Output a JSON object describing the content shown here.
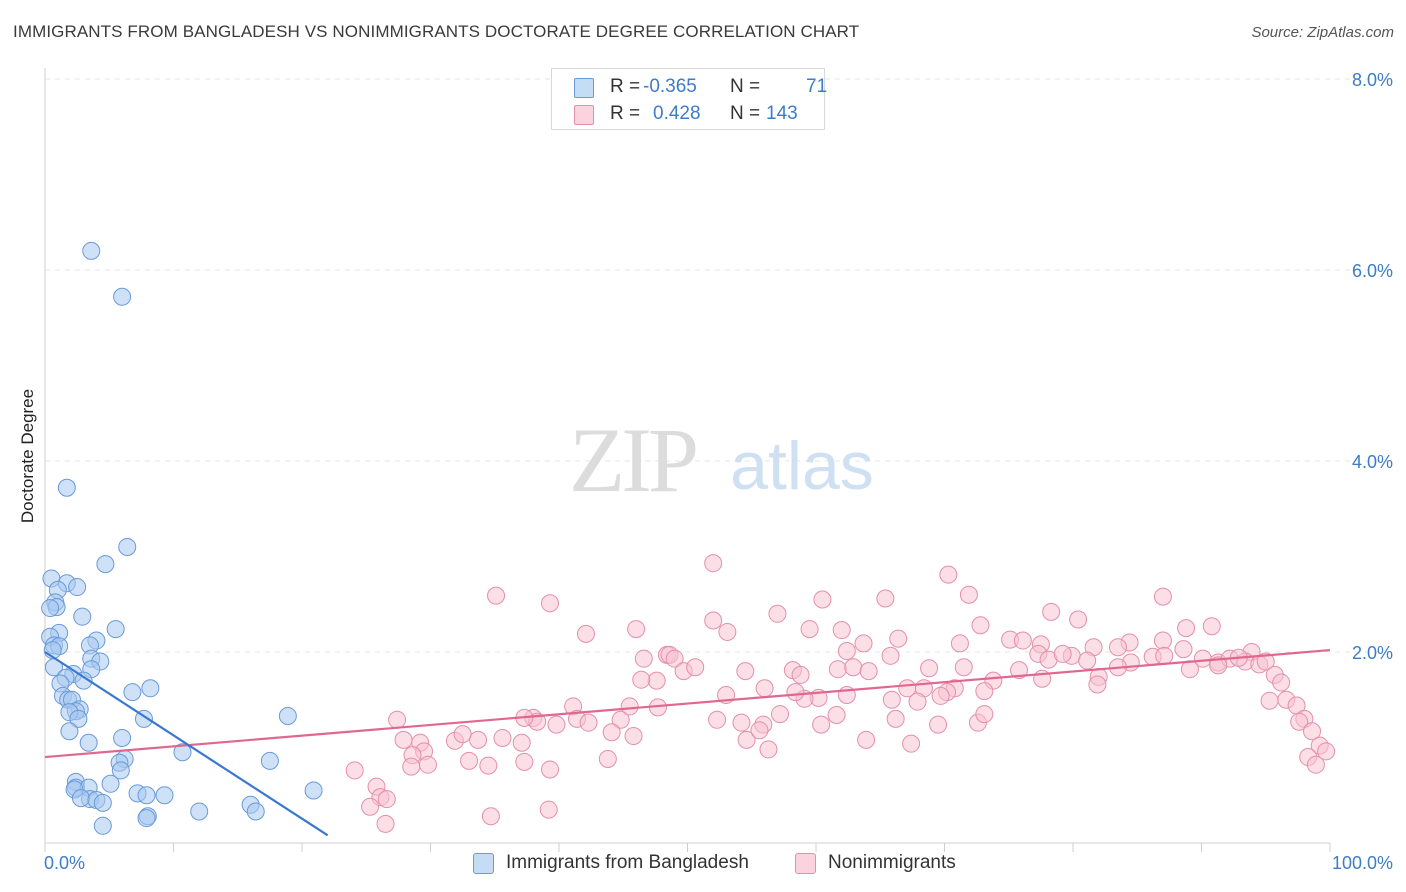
{
  "header": {
    "title": "IMMIGRANTS FROM BANGLADESH VS NONIMMIGRANTS DOCTORATE DEGREE CORRELATION CHART",
    "source": "Source: ZipAtlas.com"
  },
  "watermark": {
    "zip": "ZIP",
    "atlas": "atlas"
  },
  "legend": {
    "rows": [
      {
        "r_label": "R =",
        "r_value": "-0.365",
        "n_label": "N =",
        "n_value": "71",
        "color": "#a8c8f0",
        "border": "#5b8fd6"
      },
      {
        "r_label": "R =",
        "r_value": "0.428",
        "n_label": "N =",
        "n_value": "143",
        "color": "#f8c2d2",
        "border": "#e889a8"
      }
    ]
  },
  "bottom_legend": {
    "items": [
      {
        "label": "Immigrants from Bangladesh",
        "color": "#c5dcf5",
        "border": "#6a9ad8"
      },
      {
        "label": "Nonimmigrants",
        "color": "#fbd3df",
        "border": "#e48fac"
      }
    ]
  },
  "chart_data": {
    "type": "scatter",
    "title": "IMMIGRANTS FROM BANGLADESH VS NONIMMIGRANTS DOCTORATE DEGREE CORRELATION CHART",
    "xlabel": "",
    "ylabel": "Doctorate Degree",
    "xlim": [
      0,
      100
    ],
    "ylim": [
      0,
      8.0
    ],
    "x_tick_labels": [
      "0.0%",
      "100.0%"
    ],
    "y_ticks": [
      2.0,
      4.0,
      6.0,
      8.0
    ],
    "y_tick_labels": [
      "2.0%",
      "4.0%",
      "6.0%",
      "8.0%"
    ],
    "grid": true,
    "colors": {
      "blue_fill": "#a8c8f0",
      "blue_stroke": "#6a9ad8",
      "blue_line": "#3a78d0",
      "pink_fill": "#f8c2d2",
      "pink_stroke": "#e48fac",
      "pink_line": "#e06890",
      "tick_color": "#3d7cc9"
    },
    "series": [
      {
        "name": "Immigrants from Bangladesh",
        "r": -0.365,
        "n": 71,
        "trend": {
          "x": [
            0,
            22
          ],
          "y": [
            2.0,
            0.08
          ]
        },
        "points": [
          [
            3.6,
            6.2
          ],
          [
            6.0,
            5.72
          ],
          [
            1.7,
            3.72
          ],
          [
            6.4,
            3.1
          ],
          [
            4.7,
            2.92
          ],
          [
            0.5,
            2.77
          ],
          [
            1.7,
            2.72
          ],
          [
            2.5,
            2.68
          ],
          [
            1.0,
            2.65
          ],
          [
            0.8,
            2.52
          ],
          [
            0.9,
            2.47
          ],
          [
            0.4,
            2.46
          ],
          [
            2.9,
            2.37
          ],
          [
            5.5,
            2.24
          ],
          [
            1.1,
            2.2
          ],
          [
            0.4,
            2.16
          ],
          [
            4.0,
            2.12
          ],
          [
            0.7,
            2.07
          ],
          [
            3.5,
            2.07
          ],
          [
            1.1,
            2.06
          ],
          [
            0.6,
            2.02
          ],
          [
            3.6,
            1.93
          ],
          [
            4.3,
            1.9
          ],
          [
            0.7,
            1.84
          ],
          [
            3.6,
            1.82
          ],
          [
            2.2,
            1.77
          ],
          [
            1.6,
            1.73
          ],
          [
            3.0,
            1.7
          ],
          [
            1.2,
            1.67
          ],
          [
            8.2,
            1.62
          ],
          [
            6.8,
            1.58
          ],
          [
            1.4,
            1.54
          ],
          [
            1.8,
            1.5
          ],
          [
            2.1,
            1.5
          ],
          [
            2.7,
            1.4
          ],
          [
            2.4,
            1.38
          ],
          [
            1.9,
            1.37
          ],
          [
            2.6,
            1.3
          ],
          [
            7.7,
            1.3
          ],
          [
            18.9,
            1.33
          ],
          [
            1.9,
            1.17
          ],
          [
            3.4,
            1.05
          ],
          [
            6.0,
            1.1
          ],
          [
            10.7,
            0.95
          ],
          [
            6.2,
            0.88
          ],
          [
            5.8,
            0.84
          ],
          [
            17.5,
            0.86
          ],
          [
            5.9,
            0.76
          ],
          [
            2.4,
            0.64
          ],
          [
            2.4,
            0.58
          ],
          [
            3.4,
            0.58
          ],
          [
            2.3,
            0.56
          ],
          [
            5.1,
            0.62
          ],
          [
            7.2,
            0.52
          ],
          [
            9.3,
            0.5
          ],
          [
            7.9,
            0.5
          ],
          [
            20.9,
            0.55
          ],
          [
            3.5,
            0.46
          ],
          [
            2.8,
            0.47
          ],
          [
            4.0,
            0.45
          ],
          [
            4.5,
            0.42
          ],
          [
            12.0,
            0.33
          ],
          [
            16.0,
            0.4
          ],
          [
            16.4,
            0.33
          ],
          [
            8.0,
            0.28
          ],
          [
            7.9,
            0.26
          ],
          [
            4.5,
            0.18
          ]
        ]
      },
      {
        "name": "Nonimmigrants",
        "r": 0.428,
        "n": 143,
        "trend": {
          "x": [
            0,
            100
          ],
          "y": [
            0.9,
            2.02
          ]
        },
        "points": [
          [
            52.0,
            2.93
          ],
          [
            70.3,
            2.81
          ],
          [
            35.1,
            2.59
          ],
          [
            39.3,
            2.51
          ],
          [
            60.5,
            2.55
          ],
          [
            65.4,
            2.56
          ],
          [
            71.9,
            2.6
          ],
          [
            87.0,
            2.58
          ],
          [
            78.3,
            2.42
          ],
          [
            57.0,
            2.4
          ],
          [
            52.0,
            2.33
          ],
          [
            80.4,
            2.34
          ],
          [
            90.8,
            2.27
          ],
          [
            88.8,
            2.25
          ],
          [
            72.8,
            2.28
          ],
          [
            62.0,
            2.23
          ],
          [
            59.5,
            2.24
          ],
          [
            53.1,
            2.21
          ],
          [
            42.1,
            2.19
          ],
          [
            46.0,
            2.24
          ],
          [
            87.0,
            2.12
          ],
          [
            84.4,
            2.1
          ],
          [
            75.1,
            2.13
          ],
          [
            63.7,
            2.09
          ],
          [
            66.4,
            2.14
          ],
          [
            71.2,
            2.09
          ],
          [
            76.1,
            2.12
          ],
          [
            77.5,
            2.08
          ],
          [
            81.6,
            2.05
          ],
          [
            83.5,
            2.05
          ],
          [
            88.6,
            2.03
          ],
          [
            93.9,
            2.0
          ],
          [
            62.4,
            2.01
          ],
          [
            48.4,
            1.97
          ],
          [
            48.6,
            1.97
          ],
          [
            49.0,
            1.93
          ],
          [
            46.6,
            1.93
          ],
          [
            65.8,
            1.96
          ],
          [
            77.3,
            1.98
          ],
          [
            79.9,
            1.96
          ],
          [
            86.2,
            1.95
          ],
          [
            90.1,
            1.93
          ],
          [
            91.3,
            1.89
          ],
          [
            92.2,
            1.93
          ],
          [
            93.4,
            1.9
          ],
          [
            94.5,
            1.87
          ],
          [
            91.3,
            1.86
          ],
          [
            92.9,
            1.94
          ],
          [
            78.1,
            1.92
          ],
          [
            81.1,
            1.91
          ],
          [
            84.5,
            1.89
          ],
          [
            79.2,
            1.98
          ],
          [
            87.1,
            1.96
          ],
          [
            95.0,
            1.9
          ],
          [
            58.2,
            1.81
          ],
          [
            58.8,
            1.76
          ],
          [
            61.7,
            1.82
          ],
          [
            62.9,
            1.84
          ],
          [
            68.8,
            1.83
          ],
          [
            64.1,
            1.8
          ],
          [
            71.5,
            1.84
          ],
          [
            54.5,
            1.8
          ],
          [
            49.7,
            1.8
          ],
          [
            47.6,
            1.7
          ],
          [
            46.4,
            1.71
          ],
          [
            50.6,
            1.84
          ],
          [
            56.0,
            1.62
          ],
          [
            70.8,
            1.62
          ],
          [
            62.4,
            1.55
          ],
          [
            75.8,
            1.81
          ],
          [
            82.0,
            1.74
          ],
          [
            83.5,
            1.84
          ],
          [
            81.9,
            1.66
          ],
          [
            77.6,
            1.72
          ],
          [
            73.8,
            1.7
          ],
          [
            73.1,
            1.59
          ],
          [
            70.2,
            1.58
          ],
          [
            69.7,
            1.54
          ],
          [
            67.1,
            1.62
          ],
          [
            68.4,
            1.62
          ],
          [
            65.9,
            1.5
          ],
          [
            67.9,
            1.48
          ],
          [
            89.1,
            1.82
          ],
          [
            95.7,
            1.76
          ],
          [
            96.2,
            1.68
          ],
          [
            96.6,
            1.5
          ],
          [
            95.3,
            1.49
          ],
          [
            97.4,
            1.44
          ],
          [
            98.0,
            1.3
          ],
          [
            97.6,
            1.27
          ],
          [
            98.6,
            1.17
          ],
          [
            99.2,
            1.02
          ],
          [
            99.7,
            0.96
          ],
          [
            98.3,
            0.9
          ],
          [
            98.9,
            0.82
          ],
          [
            60.2,
            1.52
          ],
          [
            59.1,
            1.51
          ],
          [
            58.4,
            1.58
          ],
          [
            53.0,
            1.55
          ],
          [
            47.7,
            1.42
          ],
          [
            41.1,
            1.43
          ],
          [
            41.4,
            1.3
          ],
          [
            44.8,
            1.29
          ],
          [
            45.5,
            1.43
          ],
          [
            38.0,
            1.31
          ],
          [
            38.3,
            1.27
          ],
          [
            37.3,
            1.31
          ],
          [
            39.8,
            1.24
          ],
          [
            42.3,
            1.26
          ],
          [
            57.2,
            1.35
          ],
          [
            61.6,
            1.34
          ],
          [
            60.4,
            1.24
          ],
          [
            55.9,
            1.24
          ],
          [
            54.2,
            1.26
          ],
          [
            52.3,
            1.29
          ],
          [
            66.2,
            1.3
          ],
          [
            72.6,
            1.26
          ],
          [
            73.1,
            1.35
          ],
          [
            69.5,
            1.24
          ],
          [
            54.6,
            1.08
          ],
          [
            45.8,
            1.12
          ],
          [
            44.1,
            1.16
          ],
          [
            37.1,
            1.05
          ],
          [
            35.6,
            1.1
          ],
          [
            33.7,
            1.08
          ],
          [
            31.9,
            1.07
          ],
          [
            33.0,
            0.86
          ],
          [
            34.5,
            0.81
          ],
          [
            37.3,
            0.85
          ],
          [
            39.3,
            0.77
          ],
          [
            43.8,
            0.88
          ],
          [
            27.4,
            1.29
          ],
          [
            27.9,
            1.08
          ],
          [
            32.5,
            1.14
          ],
          [
            29.2,
            1.05
          ],
          [
            29.5,
            0.96
          ],
          [
            28.6,
            0.92
          ],
          [
            29.8,
            0.82
          ],
          [
            28.5,
            0.8
          ],
          [
            56.3,
            0.98
          ],
          [
            55.6,
            1.18
          ],
          [
            63.9,
            1.08
          ],
          [
            67.4,
            1.04
          ],
          [
            24.1,
            0.76
          ],
          [
            25.8,
            0.59
          ],
          [
            26.1,
            0.48
          ],
          [
            25.3,
            0.38
          ],
          [
            26.6,
            0.46
          ],
          [
            34.7,
            0.28
          ],
          [
            39.2,
            0.35
          ],
          [
            26.5,
            0.2
          ]
        ]
      }
    ]
  }
}
